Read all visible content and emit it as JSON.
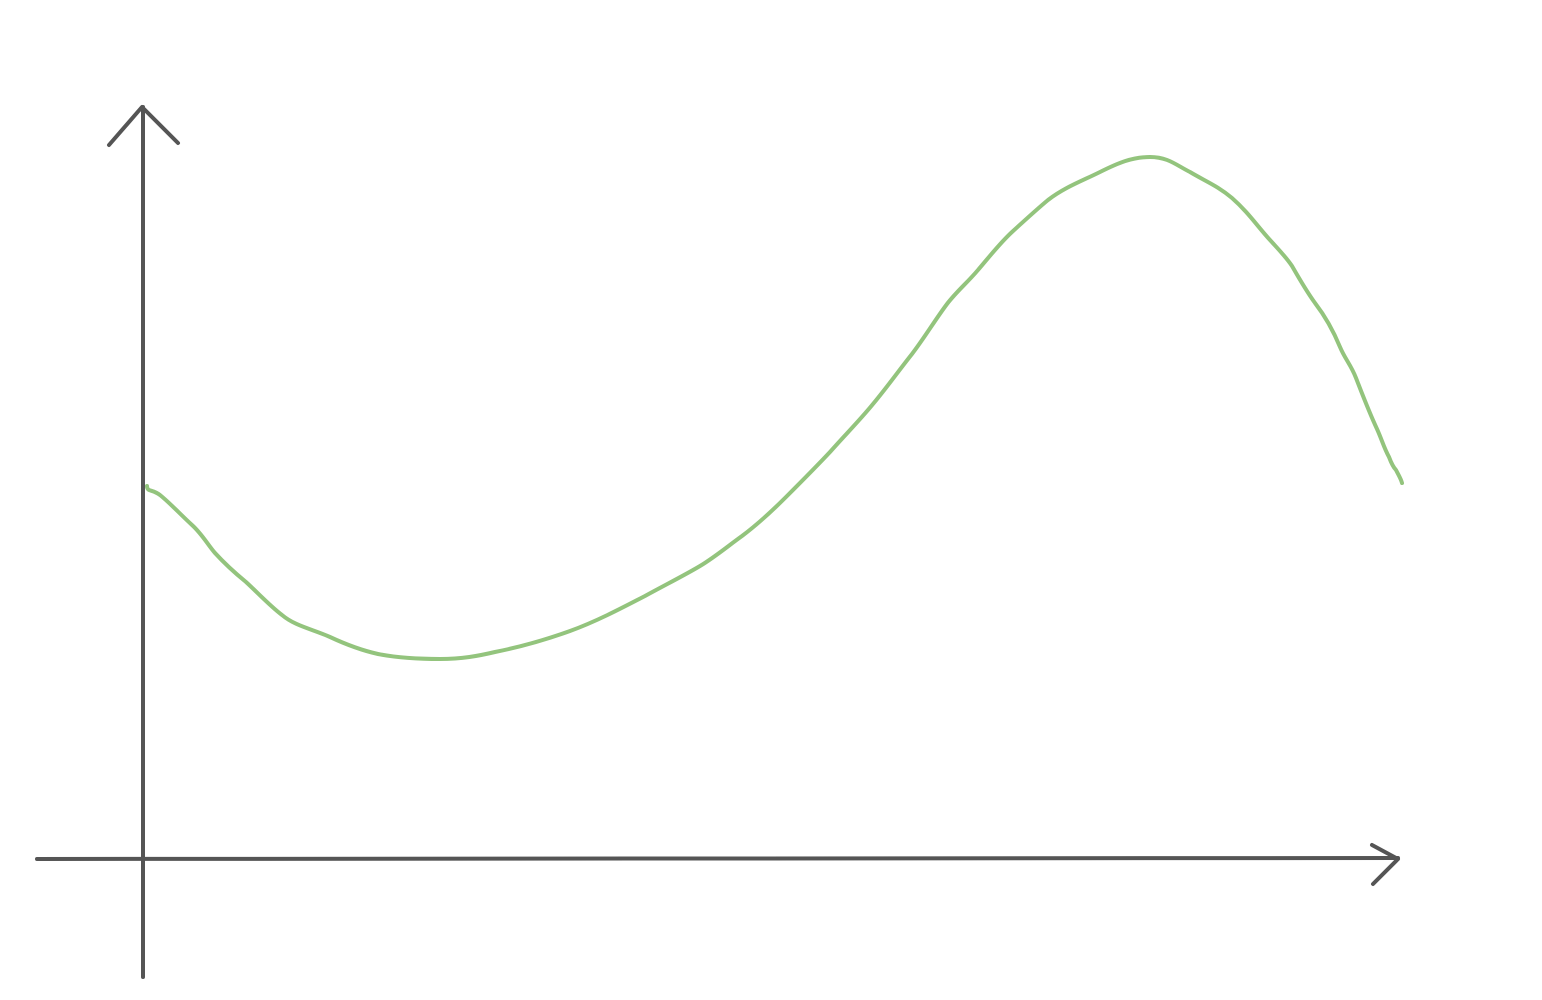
{
  "colors": {
    "background": "#ffffff",
    "axis": "#555555",
    "curve": "#93c47d"
  },
  "diagram": {
    "type": "hand-drawn-sketch",
    "axes": {
      "x_axis": {
        "arrow_direction": "right"
      },
      "y_axis": {
        "arrow_direction": "up"
      }
    },
    "curve": {
      "shape": "starts mid-height, dips to a minimum, rises to a peak, then falls",
      "color": "#93c47d"
    }
  }
}
